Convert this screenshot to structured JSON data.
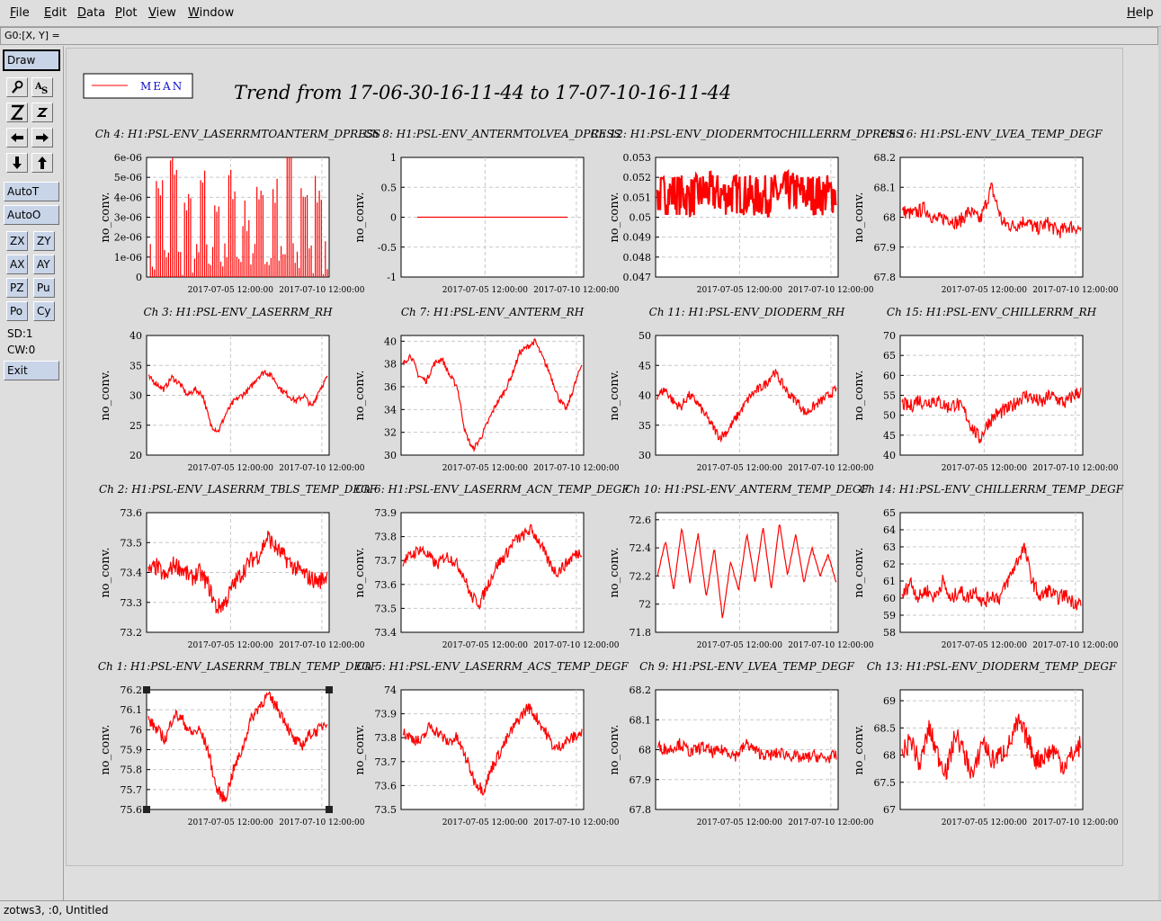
{
  "menubar": {
    "items": [
      "File",
      "Edit",
      "Data",
      "Plot",
      "View",
      "Window"
    ],
    "help": "Help"
  },
  "coordbar": {
    "text": "G0:[X, Y] ="
  },
  "toolbar": {
    "draw": "Draw",
    "autoT": "AutoT",
    "autoO": "AutoO",
    "grid_buttons": [
      "ZX",
      "ZY",
      "AX",
      "AY",
      "PZ",
      "Pu",
      "Po",
      "Cy"
    ],
    "sd": "SD:1",
    "cw": "CW:0",
    "exit": "Exit",
    "icons": [
      "magnify-icon",
      "text-cursor-icon",
      "zoom-z-icon",
      "zoom-small-z-icon",
      "arrow-left-icon",
      "arrow-right-icon",
      "arrow-down-icon",
      "arrow-up-icon"
    ]
  },
  "status": {
    "text": "zotws3, :0, Untitled"
  },
  "plot": {
    "title": "Trend from 17-06-30-16-11-44 to 17-07-10-16-11-44",
    "legend": "MEAN",
    "line_color": "#ff0000",
    "ylabel": "no_conv.",
    "xticks": [
      "2017-07-05 12:00:00",
      "2017-07-10 12:00:00"
    ]
  },
  "chart_data": [
    {
      "type": "line",
      "title": "Ch 4: H1:PSL-ENV_LASERRMTOANTERM_DPRESS",
      "ylabel": "no_conv.",
      "yticks": [
        "0",
        "1e-06",
        "2e-06",
        "3e-06",
        "4e-06",
        "5e-06",
        "6e-06"
      ],
      "ylim": [
        0,
        6e-06
      ],
      "series": [
        {
          "name": "MEAN",
          "values": [
            0,
            3.5e-06,
            0,
            4.7e-06,
            0,
            2.5e-06,
            0,
            3.7e-06,
            0,
            3e-06,
            0,
            3.8e-06,
            0,
            2.2e-06,
            0,
            3.6e-06,
            0,
            3.3e-06,
            0,
            5.5e-06,
            0,
            3.4e-06,
            0,
            3.6e-06,
            0
          ]
        }
      ]
    },
    {
      "type": "line",
      "title": "Ch 8: H1:PSL-ENV_ANTERMTOLVEA_DPRESS",
      "ylabel": "no_conv.",
      "yticks": [
        "-1",
        "-0.5",
        "0",
        "0.5",
        "1"
      ],
      "ylim": [
        -1,
        1
      ],
      "series": [
        {
          "name": "MEAN",
          "values": [
            0,
            0
          ]
        }
      ]
    },
    {
      "type": "line",
      "title": "Ch 12: H1:PSL-ENV_DIODERMTOCHILLERRM_DPRESS",
      "ylabel": "no_conv.",
      "yticks": [
        "0.047",
        "0.048",
        "0.049",
        "0.05",
        "0.051",
        "0.052",
        "0.053"
      ],
      "ylim": [
        0.047,
        0.053
      ],
      "series": [
        {
          "name": "MEAN",
          "values": [
            0.0511,
            0.0512,
            0.051,
            0.0513,
            0.0511,
            0.0512,
            0.051,
            0.0511,
            0.0513,
            0.0512,
            0.0511,
            0.0512
          ]
        }
      ]
    },
    {
      "type": "line",
      "title": "Ch 16: H1:PSL-ENV_LVEA_TEMP_DEGF",
      "ylabel": "no_conv.",
      "yticks": [
        "67.8",
        "67.9",
        "68",
        "68.1",
        "68.2"
      ],
      "ylim": [
        67.8,
        68.2
      ],
      "series": [
        {
          "name": "MEAN",
          "values": [
            68.02,
            68.01,
            68.03,
            67.99,
            68.0,
            67.98,
            68.02,
            67.99,
            68.1,
            67.98,
            67.97,
            67.99,
            67.96,
            67.98,
            67.95,
            67.97,
            67.96
          ]
        }
      ]
    },
    {
      "type": "line",
      "title": "Ch 3: H1:PSL-ENV_LASERRM_RH",
      "ylabel": "no_conv.",
      "yticks": [
        "20",
        "25",
        "30",
        "35",
        "40"
      ],
      "ylim": [
        20,
        40
      ],
      "series": [
        {
          "name": "MEAN",
          "values": [
            33,
            32,
            31,
            33,
            32,
            30,
            31,
            30,
            25,
            24,
            27,
            29,
            30,
            31,
            33,
            34,
            33,
            31,
            30,
            29,
            30,
            28,
            31,
            33
          ]
        }
      ]
    },
    {
      "type": "line",
      "title": "Ch 7: H1:PSL-ENV_ANTERM_RH",
      "ylabel": "no_conv.",
      "yticks": [
        "30",
        "32",
        "34",
        "36",
        "38",
        "40"
      ],
      "ylim": [
        30,
        40.5
      ],
      "series": [
        {
          "name": "MEAN",
          "values": [
            38,
            38.8,
            37,
            36.5,
            38,
            38.5,
            37,
            36,
            32,
            30.5,
            31.5,
            33,
            34.5,
            35.5,
            37,
            39,
            39.5,
            40,
            38.5,
            37,
            35,
            34,
            36,
            38
          ]
        }
      ]
    },
    {
      "type": "line",
      "title": "Ch 11: H1:PSL-ENV_DIODERM_RH",
      "ylabel": "no_conv.",
      "yticks": [
        "30",
        "35",
        "40",
        "45",
        "50"
      ],
      "ylim": [
        30,
        50
      ],
      "series": [
        {
          "name": "MEAN",
          "values": [
            40,
            41,
            39,
            38,
            40,
            39,
            37,
            35,
            33,
            34,
            36,
            38,
            40,
            41,
            42,
            44,
            42,
            40,
            39,
            37,
            38,
            39,
            40,
            41
          ]
        }
      ]
    },
    {
      "type": "line",
      "title": "Ch 15: H1:PSL-ENV_CHILLERRM_RH",
      "ylabel": "no_conv.",
      "yticks": [
        "40",
        "45",
        "50",
        "55",
        "60",
        "65",
        "70"
      ],
      "ylim": [
        40,
        70
      ],
      "series": [
        {
          "name": "MEAN",
          "values": [
            53,
            52,
            54,
            53,
            54,
            53,
            52,
            53,
            51,
            47,
            44,
            48,
            50,
            51,
            52,
            54,
            55,
            54,
            53,
            55,
            54,
            53,
            55,
            56
          ]
        }
      ]
    },
    {
      "type": "line",
      "title": "Ch 2: H1:PSL-ENV_LASERRM_TBLS_TEMP_DEGF",
      "ylabel": "no_conv.",
      "yticks": [
        "73.2",
        "73.3",
        "73.4",
        "73.5",
        "73.6"
      ],
      "ylim": [
        73.2,
        73.6
      ],
      "series": [
        {
          "name": "MEAN",
          "values": [
            73.4,
            73.42,
            73.38,
            73.43,
            73.41,
            73.38,
            73.4,
            73.36,
            73.28,
            73.3,
            73.36,
            73.4,
            73.44,
            73.46,
            73.52,
            73.48,
            73.45,
            73.42,
            73.4,
            73.38,
            73.37,
            73.39
          ]
        }
      ]
    },
    {
      "type": "line",
      "title": "Ch 6: H1:PSL-ENV_LASERRM_ACN_TEMP_DEGF",
      "ylabel": "no_conv.",
      "yticks": [
        "73.4",
        "73.5",
        "73.6",
        "73.7",
        "73.8",
        "73.9"
      ],
      "ylim": [
        73.4,
        73.9
      ],
      "series": [
        {
          "name": "MEAN",
          "values": [
            73.7,
            73.72,
            73.75,
            73.72,
            73.68,
            73.72,
            73.7,
            73.65,
            73.55,
            73.52,
            73.6,
            73.68,
            73.72,
            73.78,
            73.8,
            73.83,
            73.78,
            73.7,
            73.65,
            73.68,
            73.72,
            73.74
          ]
        }
      ]
    },
    {
      "type": "line",
      "title": "Ch 10: H1:PSL-ENV_ANTERM_TEMP_DEGF",
      "ylabel": "no_conv.",
      "yticks": [
        "71.8",
        "72",
        "72.2",
        "72.4",
        "72.6"
      ],
      "ylim": [
        71.8,
        72.65
      ],
      "series": [
        {
          "name": "MEAN",
          "values": [
            72.2,
            72.45,
            72.1,
            72.55,
            72.15,
            72.5,
            72.05,
            72.4,
            71.9,
            72.3,
            72.1,
            72.5,
            72.15,
            72.55,
            72.1,
            72.58,
            72.2,
            72.5,
            72.15,
            72.4,
            72.2,
            72.35,
            72.15
          ]
        }
      ]
    },
    {
      "type": "line",
      "title": "Ch 14: H1:PSL-ENV_CHILLERRM_TEMP_DEGF",
      "ylabel": "no_conv.",
      "yticks": [
        "58",
        "59",
        "60",
        "61",
        "62",
        "63",
        "64",
        "65"
      ],
      "ylim": [
        58,
        65
      ],
      "series": [
        {
          "name": "MEAN",
          "values": [
            60,
            61,
            60,
            60.5,
            60,
            61,
            59.8,
            60.5,
            60,
            60.5,
            59.7,
            60.2,
            60,
            61,
            62,
            63,
            61,
            60,
            60.5,
            60,
            60.2,
            59.8,
            59.7
          ]
        }
      ]
    },
    {
      "type": "line",
      "title": "Ch 1: H1:PSL-ENV_LASERRM_TBLN_TEMP_DEGF",
      "ylabel": "no_conv.",
      "yticks": [
        "75.6",
        "75.7",
        "75.8",
        "75.9",
        "76",
        "76.1",
        "76.2"
      ],
      "ylim": [
        75.6,
        76.2
      ],
      "series": [
        {
          "name": "MEAN",
          "values": [
            76.05,
            76.0,
            75.95,
            76.08,
            76.05,
            75.98,
            76.0,
            75.9,
            75.7,
            75.65,
            75.8,
            75.9,
            76.05,
            76.12,
            76.17,
            76.12,
            76.05,
            75.95,
            75.92,
            75.98,
            76.0,
            76.05
          ]
        }
      ]
    },
    {
      "type": "line",
      "title": "Ch 5: H1:PSL-ENV_LASERRM_ACS_TEMP_DEGF",
      "ylabel": "no_conv.",
      "yticks": [
        "73.5",
        "73.6",
        "73.7",
        "73.8",
        "73.9",
        "74"
      ],
      "ylim": [
        73.5,
        74
      ],
      "series": [
        {
          "name": "MEAN",
          "values": [
            73.82,
            73.8,
            73.78,
            73.85,
            73.82,
            73.78,
            73.8,
            73.72,
            73.62,
            73.58,
            73.68,
            73.75,
            73.82,
            73.88,
            73.93,
            73.88,
            73.82,
            73.75,
            73.78,
            73.8,
            73.82
          ]
        }
      ]
    },
    {
      "type": "line",
      "title": "Ch 9: H1:PSL-ENV_LVEA_TEMP_DEGF",
      "ylabel": "no_conv.",
      "yticks": [
        "67.8",
        "67.9",
        "68",
        "68.1",
        "68.2"
      ],
      "ylim": [
        67.8,
        68.2
      ],
      "series": [
        {
          "name": "MEAN",
          "values": [
            68.01,
            68.0,
            68.02,
            67.99,
            68.01,
            67.99,
            68.0,
            67.98,
            68.02,
            67.99,
            67.98,
            67.99,
            67.98,
            67.97,
            67.98,
            67.97,
            67.98
          ]
        }
      ]
    },
    {
      "type": "line",
      "title": "Ch 13: H1:PSL-ENV_DIODERM_TEMP_DEGF",
      "ylabel": "no_conv.",
      "yticks": [
        "67",
        "67.5",
        "68",
        "68.5",
        "69"
      ],
      "ylim": [
        67,
        69.2
      ],
      "series": [
        {
          "name": "MEAN",
          "values": [
            68.0,
            68.3,
            67.8,
            68.5,
            68.0,
            67.7,
            68.4,
            68.0,
            67.6,
            68.3,
            67.9,
            68.0,
            68.2,
            68.6,
            68.3,
            67.9,
            68.0,
            68.1,
            67.8,
            68.0,
            68.2
          ]
        }
      ]
    }
  ]
}
